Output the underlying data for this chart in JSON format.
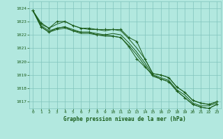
{
  "title": "Graphe pression niveau de la mer (hPa)",
  "background_color": "#b2e8df",
  "grid_color": "#80c4bc",
  "line_color": "#1a5c1a",
  "xlim": [
    -0.5,
    23.5
  ],
  "ylim": [
    1016.5,
    1024.5
  ],
  "yticks": [
    1017,
    1018,
    1019,
    1020,
    1021,
    1022,
    1023,
    1024
  ],
  "xticks": [
    0,
    1,
    2,
    3,
    4,
    5,
    6,
    7,
    8,
    9,
    10,
    11,
    12,
    13,
    14,
    15,
    16,
    17,
    18,
    19,
    20,
    21,
    22,
    23
  ],
  "s1": [
    1023.8,
    1022.8,
    1022.5,
    1022.8,
    1023.0,
    1022.7,
    1022.5,
    1022.4,
    1022.4,
    1022.3,
    1022.4,
    1022.3,
    1021.7,
    1021.0,
    1020.2,
    1019.1,
    1019.0,
    1018.8,
    1018.1,
    1017.7,
    1017.1,
    1016.9,
    1016.8,
    1017.0
  ],
  "s2": [
    1023.8,
    1022.6,
    1022.2,
    1022.4,
    1022.5,
    1022.3,
    1022.1,
    1022.1,
    1022.0,
    1021.9,
    1021.9,
    1021.8,
    1021.2,
    1020.5,
    1019.7,
    1018.9,
    1018.7,
    1018.5,
    1017.8,
    1017.3,
    1016.8,
    1016.6,
    1016.5,
    1016.8
  ],
  "s3": [
    1023.8,
    1022.7,
    1022.3,
    1022.5,
    1022.6,
    1022.4,
    1022.2,
    1022.2,
    1022.1,
    1022.0,
    1022.1,
    1022.0,
    1021.4,
    1020.7,
    1019.9,
    1019.0,
    1018.8,
    1018.6,
    1017.9,
    1017.5,
    1016.9,
    1016.7,
    1016.7,
    1016.9
  ],
  "sm1_x": [
    0,
    1,
    2,
    3,
    4,
    5,
    6,
    7,
    8,
    9,
    10,
    11,
    12,
    13,
    14,
    15,
    16,
    17,
    18,
    19,
    20,
    21,
    22,
    23
  ],
  "sm1_y": [
    1023.8,
    1022.9,
    1022.5,
    1023.0,
    1023.0,
    1022.7,
    1022.5,
    1022.5,
    1022.4,
    1022.4,
    1022.4,
    1022.4,
    1021.8,
    1021.5,
    1020.2,
    1019.1,
    1019.0,
    1018.8,
    1018.1,
    1017.7,
    1017.1,
    1016.9,
    1016.8,
    1017.0
  ],
  "sm2_x": [
    0,
    1,
    2,
    3,
    4,
    5,
    6,
    7,
    8,
    9,
    10,
    11,
    12,
    13,
    14,
    15,
    16,
    17,
    18,
    19,
    20,
    21,
    22,
    23
  ],
  "sm2_y": [
    1023.8,
    1022.6,
    1022.2,
    1022.5,
    1022.6,
    1022.3,
    1022.2,
    1022.2,
    1022.0,
    1022.0,
    1021.9,
    1021.8,
    1021.1,
    1020.2,
    1019.6,
    1019.0,
    1018.7,
    1018.5,
    1017.8,
    1017.3,
    1016.8,
    1016.6,
    1016.5,
    1016.8
  ]
}
